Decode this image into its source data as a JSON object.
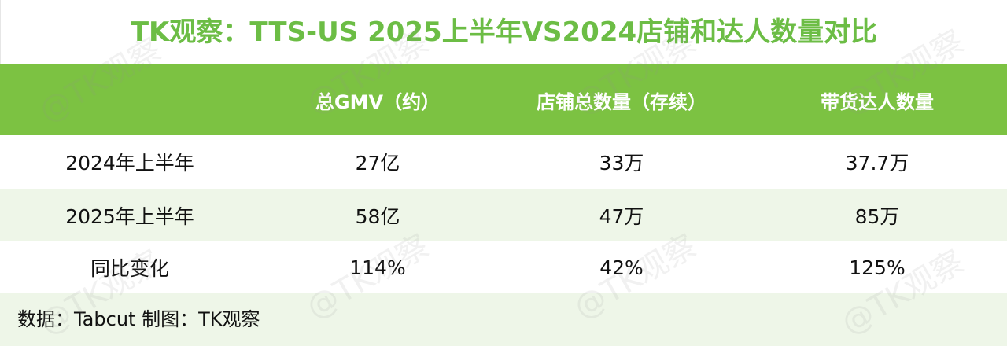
{
  "header": {
    "title": "TK观察：TTS-US 2025上半年VS2024店铺和达人数量对比"
  },
  "table": {
    "columns": [
      "总GMV（约）",
      "店铺总数量（存续）",
      "带货达人数量"
    ],
    "rows": [
      [
        "2024年上半年",
        "27亿",
        "33万",
        "37.7万"
      ],
      [
        "2025年上半年",
        "58亿",
        "47万",
        "85万"
      ],
      [
        "同比变化",
        "114%",
        "42%",
        "125%"
      ]
    ]
  },
  "footer": {
    "source": "数据：Tabcut 制图：TK观察"
  },
  "watermark": "@TK观察"
}
